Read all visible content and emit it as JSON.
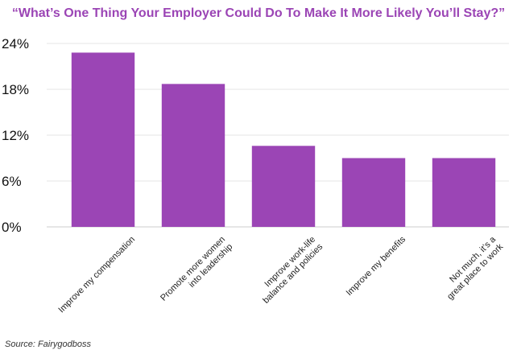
{
  "chart_data": {
    "type": "bar",
    "title": "“What’s One Thing Your Employer Could Do To Make It More Likely You’ll Stay?”",
    "categories": [
      [
        "Improve my compensation"
      ],
      [
        "Promote more women",
        "into leadership"
      ],
      [
        "Improve work-life",
        "balance and policies"
      ],
      [
        "Improve my benefits"
      ],
      [
        "Not much, it’s a",
        "great place to work"
      ]
    ],
    "values": [
      22.8,
      18.7,
      10.6,
      9.0,
      9.0
    ],
    "yticks": [
      0,
      6,
      12,
      18,
      24
    ],
    "ytick_labels": [
      "0%",
      "6%",
      "12%",
      "18%",
      "24%"
    ],
    "ylim": [
      0,
      24
    ],
    "xlabel": "",
    "ylabel": "",
    "grid": true,
    "bar_color": "#9b45b5",
    "grid_color": "#e6e6e6"
  },
  "source": "Source: Fairygodboss"
}
